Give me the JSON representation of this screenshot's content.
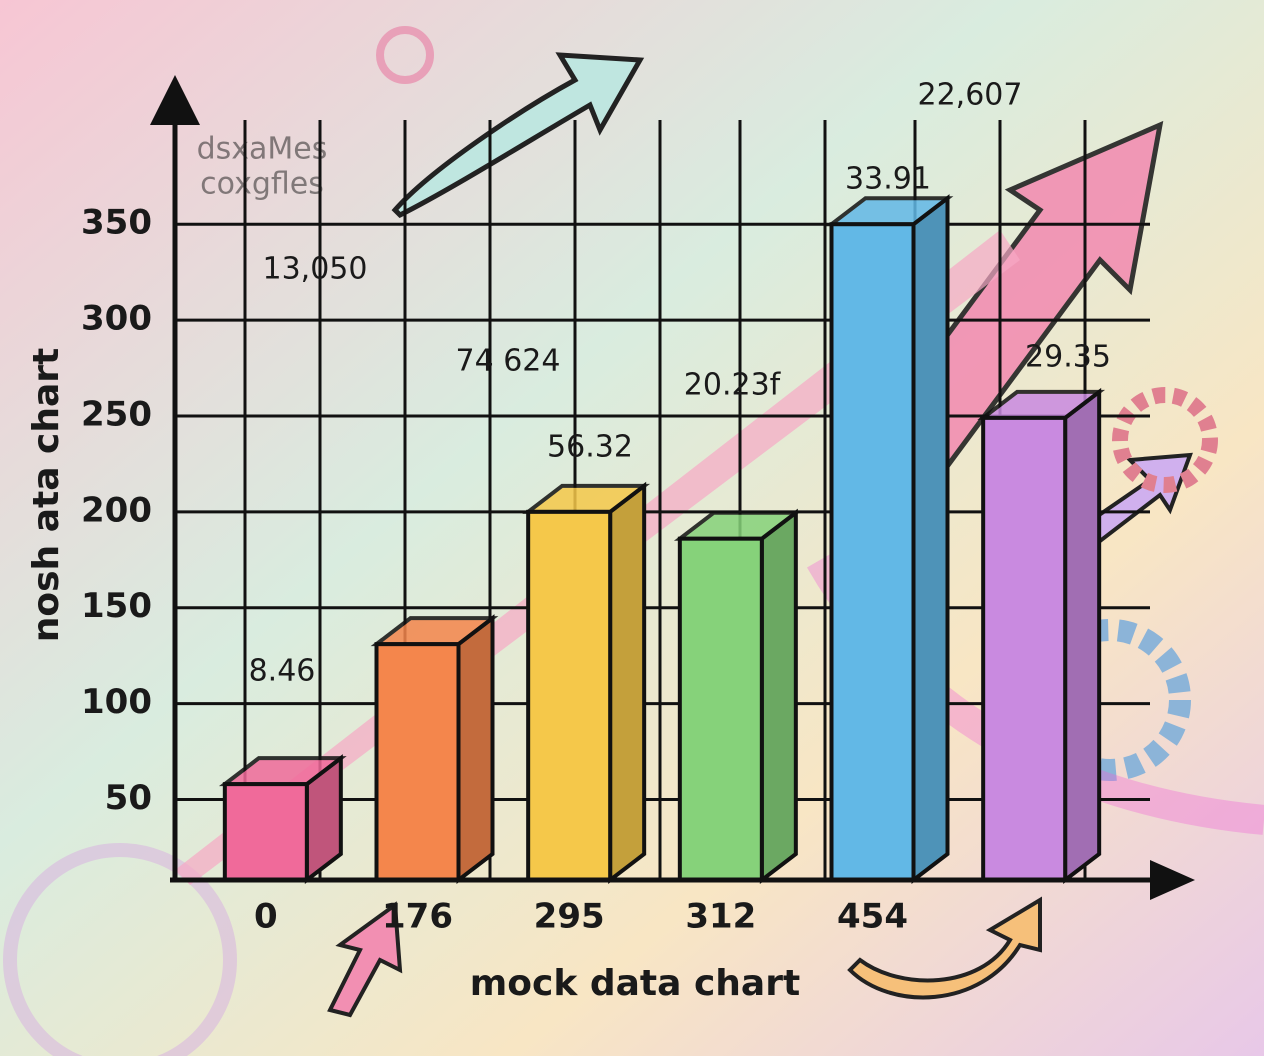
{
  "chart_data": {
    "type": "bar",
    "x_label": "mock data chart",
    "y_label": "nosh ata chart",
    "categories": [
      "0",
      "176",
      "295",
      "312",
      "454",
      null
    ],
    "values": [
      58,
      131,
      200,
      186,
      350,
      249
    ],
    "colors": [
      "#f06a9a",
      "#f4864c",
      "#f5c84a",
      "#86d27a",
      "#62b8e6",
      "#c98ae0"
    ],
    "ylim": [
      8,
      420
    ],
    "yticks": [
      50,
      100,
      150,
      200,
      250,
      300,
      350
    ],
    "grid": true,
    "annotations": [
      "dsxaMes",
      "coxgfles",
      "13,050",
      "74 624",
      "56.32",
      "8.46",
      "20.23f",
      "33.91",
      "22,607",
      "29.35"
    ]
  }
}
